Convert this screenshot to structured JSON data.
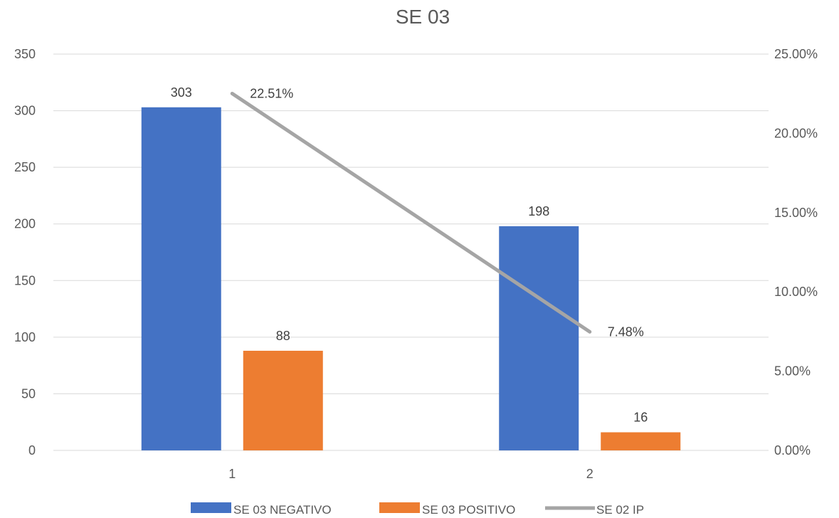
{
  "chart_data": {
    "type": "bar",
    "title": "SE 03",
    "categories": [
      "1",
      "2"
    ],
    "series": [
      {
        "name": "SE 03  NEGATIVO",
        "type": "bar",
        "axis": "left",
        "color": "#4472C4",
        "values": [
          303,
          198
        ],
        "labels": [
          "303",
          "198"
        ]
      },
      {
        "name": "SE 03  POSITIVO",
        "type": "bar",
        "axis": "left",
        "color": "#ED7D31",
        "values": [
          88,
          16
        ],
        "labels": [
          "88",
          "16"
        ]
      },
      {
        "name": "SE 02 IP",
        "type": "line",
        "axis": "right",
        "color": "#A5A5A5",
        "values": [
          22.51,
          7.48
        ],
        "labels": [
          "22.51%",
          "7.48%"
        ]
      }
    ],
    "y_left": {
      "min": 0,
      "max": 350,
      "step": 50,
      "ticks": [
        "0",
        "50",
        "100",
        "150",
        "200",
        "250",
        "300",
        "350"
      ]
    },
    "y_right": {
      "min": 0,
      "max": 25,
      "step": 5,
      "ticks": [
        "0.00%",
        "5.00%",
        "10.00%",
        "15.00%",
        "20.00%",
        "25.00%"
      ]
    },
    "grid": true,
    "legend_position": "bottom"
  }
}
